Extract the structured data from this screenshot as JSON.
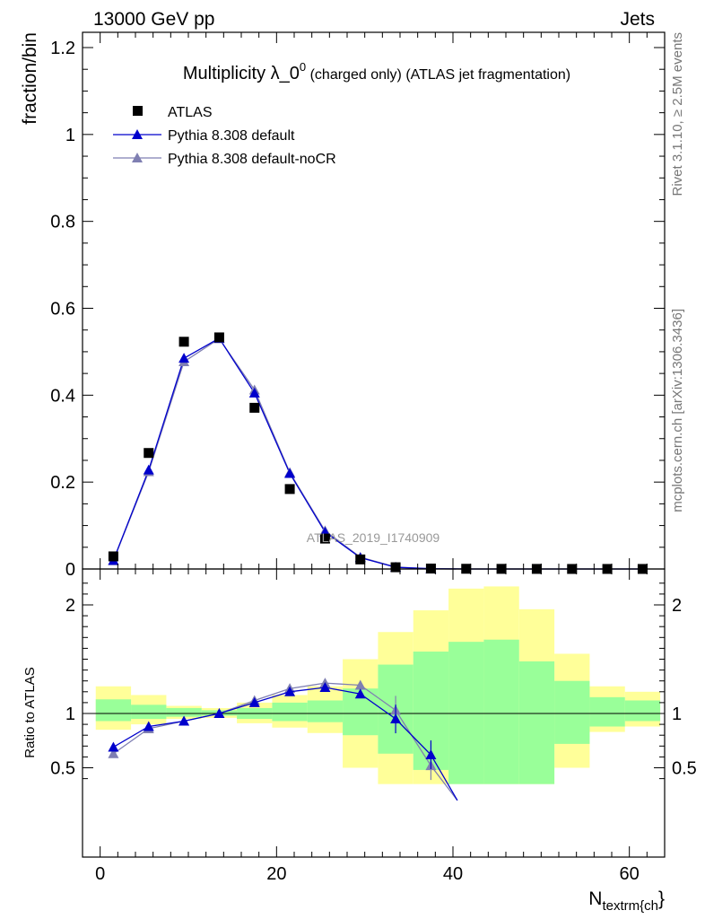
{
  "header": {
    "left": "13000 GeV pp",
    "right": "Jets",
    "side_top": "Rivet 3.1.10, ≥ 2.5M events",
    "side_bottom": "mcplots.cern.ch [arXiv:1306.3436]",
    "watermark": "ATLAS_2019_I1740909"
  },
  "colors": {
    "data": "#000000",
    "default": "#0000cc",
    "nocr": "#7f7fb2",
    "band_inner": "#99ff99",
    "band_outer": "#ffff99"
  },
  "chart_data": [
    {
      "type": "line",
      "title_main": "Multiplicity λ_0",
      "title_sup": "0",
      "title_rest": " (charged only) (ATLAS jet fragmentation)",
      "ylabel": "fraction/bin",
      "xlim": [
        -2,
        64
      ],
      "ylim": [
        0,
        1.25
      ],
      "yticks": [
        "0",
        "0.2",
        "0.4",
        "0.6",
        "0.8",
        "1",
        "1.2"
      ],
      "ytick_values": [
        0,
        0.2,
        0.4,
        0.6,
        0.8,
        1.0,
        1.2
      ],
      "x": [
        1.5,
        5.5,
        9.5,
        13.5,
        17.5,
        21.5,
        25.5,
        29.5,
        33.5,
        37.5,
        41.5,
        45.5,
        49.5,
        53.5,
        57.5,
        61.5
      ],
      "legend": [
        "ATLAS",
        "Pythia 8.308 default",
        "Pythia 8.308 default-noCR"
      ],
      "series": [
        {
          "name": "ATLAS",
          "values": [
            0.029,
            0.267,
            0.523,
            0.533,
            0.371,
            0.184,
            0.07,
            0.022,
            0.004,
            0.001,
            0.0005,
            0.0003,
            0.0002,
            0.0001,
            0.0001,
            0.0001
          ]
        },
        {
          "name": "Pythia 8.308 default",
          "values": [
            0.02,
            0.228,
            0.485,
            0.531,
            0.405,
            0.22,
            0.085,
            0.026,
            0.004,
            0.0006,
            0.0001,
            0,
            0,
            0,
            0,
            0
          ]
        },
        {
          "name": "Pythia 8.308 default-noCR",
          "values": [
            0.019,
            0.224,
            0.477,
            0.53,
            0.412,
            0.222,
            0.088,
            0.027,
            0.0045,
            0.0005,
            0.0001,
            0,
            0,
            0,
            0,
            0
          ]
        }
      ]
    },
    {
      "type": "line",
      "ylabel": "Ratio to ATLAS",
      "xlabel_main": "N",
      "xlabel_sub": "textrm{ch",
      "xlabel_close": "}",
      "xlim": [
        -2,
        64
      ],
      "ylim": [
        0.35,
        2.3
      ],
      "xticks": [
        "0",
        "20",
        "40",
        "60"
      ],
      "xtick_values": [
        0,
        20,
        40,
        60
      ],
      "yticks": [
        "0.5",
        "1",
        "2"
      ],
      "ytick_values": [
        0.5,
        1,
        2
      ],
      "bin_edges": [
        -0.5,
        3.5,
        7.5,
        11.5,
        15.5,
        19.5,
        23.5,
        27.5,
        31.5,
        35.5,
        39.5,
        43.5,
        47.5,
        51.5,
        55.5,
        59.5,
        63.5
      ],
      "band_inner": [
        [
          0.93,
          1.13
        ],
        [
          0.95,
          1.08
        ],
        [
          0.97,
          1.05
        ],
        [
          0.98,
          1.03
        ],
        [
          0.95,
          1.05
        ],
        [
          0.93,
          1.1
        ],
        [
          0.92,
          1.12
        ],
        [
          0.8,
          1.23
        ],
        [
          0.63,
          1.45
        ],
        [
          0.48,
          1.57
        ],
        [
          0.35,
          1.66
        ],
        [
          0.35,
          1.68
        ],
        [
          0.35,
          1.48
        ],
        [
          0.72,
          1.3
        ],
        [
          0.88,
          1.15
        ],
        [
          0.93,
          1.12
        ]
      ],
      "band_outer": [
        [
          0.85,
          1.25
        ],
        [
          0.9,
          1.17
        ],
        [
          0.95,
          1.07
        ],
        [
          0.96,
          1.05
        ],
        [
          0.91,
          1.1
        ],
        [
          0.87,
          1.17
        ],
        [
          0.82,
          1.25
        ],
        [
          0.5,
          1.5
        ],
        [
          0.35,
          1.75
        ],
        [
          0.35,
          1.95
        ],
        [
          0.35,
          2.15
        ],
        [
          0.35,
          2.17
        ],
        [
          0.35,
          1.96
        ],
        [
          0.5,
          1.55
        ],
        [
          0.83,
          1.25
        ],
        [
          0.88,
          1.2
        ]
      ],
      "x": [
        1.5,
        5.5,
        9.5,
        13.5,
        17.5,
        21.5,
        25.5,
        29.5,
        33.5,
        37.5
      ],
      "series": [
        {
          "name": "Pythia 8.308 default",
          "values": [
            0.69,
            0.88,
            0.93,
            1.0,
            1.1,
            1.2,
            1.24,
            1.18,
            0.95,
            0.62
          ]
        },
        {
          "name": "Pythia 8.308 default-noCR",
          "values": [
            0.63,
            0.86,
            0.93,
            1.0,
            1.12,
            1.23,
            1.28,
            1.26,
            1.03,
            0.52
          ]
        }
      ]
    }
  ]
}
